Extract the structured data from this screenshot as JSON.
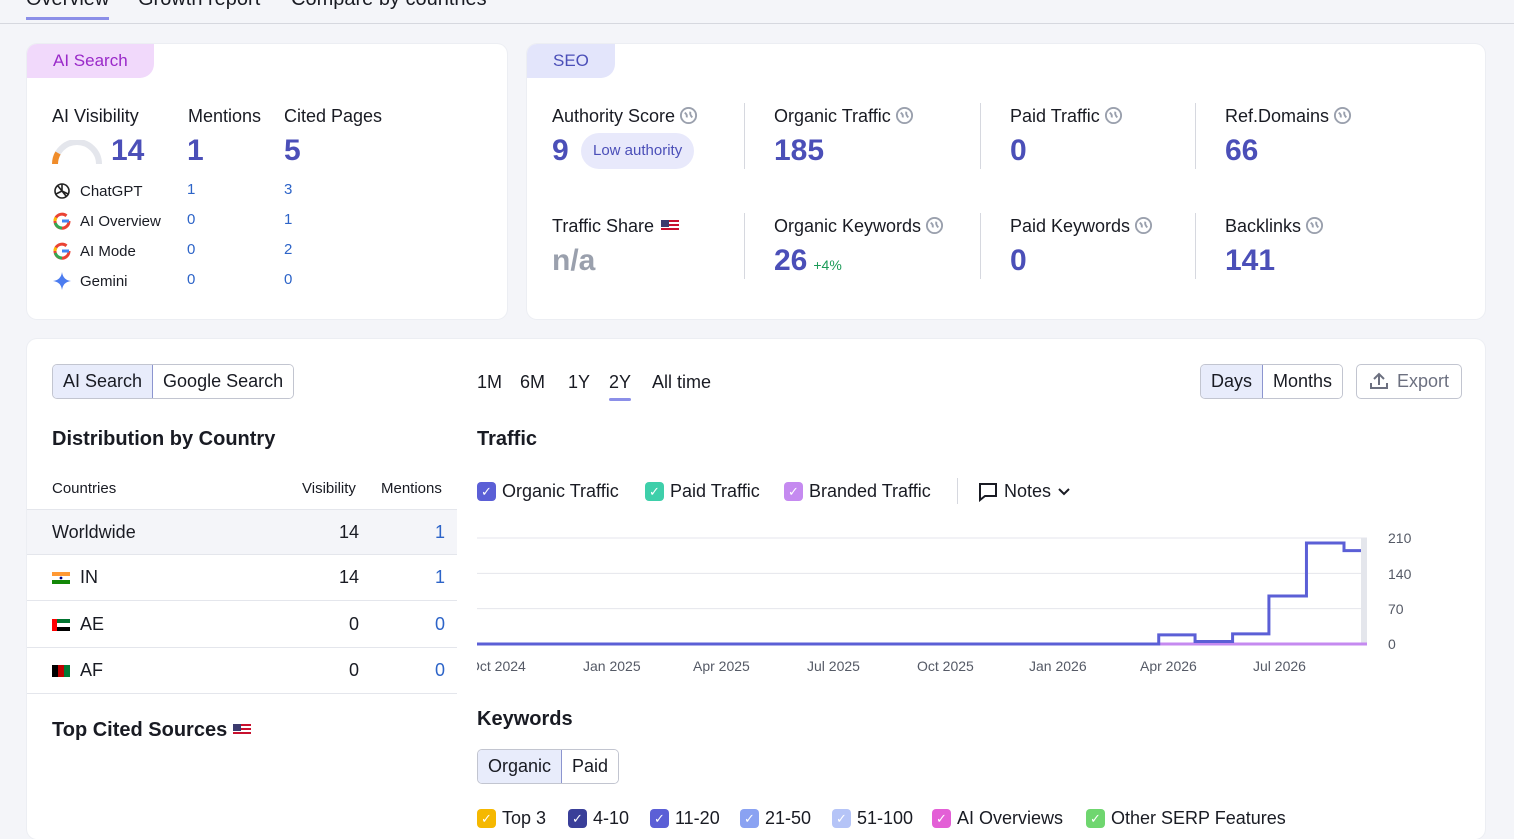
{
  "tabs": [
    {
      "label": "Overview",
      "active": true
    },
    {
      "label": "Growth report",
      "active": false
    },
    {
      "label": "Compare by countries",
      "active": false
    }
  ],
  "ai_card": {
    "tag": "AI Search",
    "ai_visibility_label": "AI Visibility",
    "ai_visibility_value": "14",
    "mentions_label": "Mentions",
    "mentions_value": "1",
    "cited_label": "Cited Pages",
    "cited_value": "5",
    "engines": [
      {
        "name": "ChatGPT",
        "icon": "chatgpt-icon",
        "mentions": "1",
        "cited": "3"
      },
      {
        "name": "AI Overview",
        "icon": "google-icon",
        "mentions": "0",
        "cited": "1"
      },
      {
        "name": "AI Mode",
        "icon": "google-icon",
        "mentions": "0",
        "cited": "2"
      },
      {
        "name": "Gemini",
        "icon": "gemini-icon",
        "mentions": "0",
        "cited": "0"
      }
    ]
  },
  "seo_card": {
    "tag": "SEO",
    "authority_label": "Authority Score",
    "authority_value": "9",
    "authority_badge": "Low authority",
    "organic_traffic_label": "Organic Traffic",
    "organic_traffic_value": "185",
    "paid_traffic_label": "Paid Traffic",
    "paid_traffic_value": "0",
    "ref_domains_label": "Ref.Domains",
    "ref_domains_value": "66",
    "traffic_share_label": "Traffic Share",
    "traffic_share_value": "n/a",
    "organic_keywords_label": "Organic Keywords",
    "organic_keywords_value": "26",
    "organic_keywords_delta": "+4%",
    "paid_keywords_label": "Paid Keywords",
    "paid_keywords_value": "0",
    "backlinks_label": "Backlinks",
    "backlinks_value": "141"
  },
  "left_panel": {
    "seg": [
      "AI Search",
      "Google Search"
    ],
    "dist_title": "Distribution by Country",
    "col_countries": "Countries",
    "col_visibility": "Visibility",
    "col_mentions": "Mentions",
    "rows": [
      {
        "country": "Worldwide",
        "visibility": "14",
        "mentions": "1"
      },
      {
        "country": "IN",
        "visibility": "14",
        "mentions": "1"
      },
      {
        "country": "AE",
        "visibility": "0",
        "mentions": "0"
      },
      {
        "country": "AF",
        "visibility": "0",
        "mentions": "0"
      }
    ],
    "top_cited_title": "Top Cited Sources"
  },
  "periods": [
    "1M",
    "6M",
    "1Y",
    "2Y",
    "All time"
  ],
  "active_period": "2Y",
  "granularity": [
    "Days",
    "Months"
  ],
  "export_label": "Export",
  "traffic_title": "Traffic",
  "legend": [
    {
      "label": "Organic Traffic",
      "color": "#5b5fd6"
    },
    {
      "label": "Paid Traffic",
      "color": "#3ecfaa"
    },
    {
      "label": "Branded Traffic",
      "color": "#c58af0"
    }
  ],
  "notes_label": "Notes",
  "keywords_title": "Keywords",
  "keywords_seg": [
    "Organic",
    "Paid"
  ],
  "keyword_legend": [
    {
      "label": "Top 3",
      "color": "#f5b800"
    },
    {
      "label": "4-10",
      "color": "#3a3f99"
    },
    {
      "label": "11-20",
      "color": "#5b5fd6"
    },
    {
      "label": "21-50",
      "color": "#8aa2f2"
    },
    {
      "label": "51-100",
      "color": "#b5c4f7"
    },
    {
      "label": "AI Overviews",
      "color": "#e35fd6"
    },
    {
      "label": "Other SERP Features",
      "color": "#6fd66f"
    }
  ],
  "chart_data": {
    "type": "line",
    "x_tick_labels": [
      "Oct 2024",
      "Jan 2025",
      "Apr 2025",
      "Jul 2025",
      "Oct 2025",
      "Jan 2026",
      "Apr 2026",
      "Jul 2026"
    ],
    "y_tick_labels": [
      "210",
      "140",
      "70",
      "0"
    ],
    "ylim": [
      0,
      210
    ],
    "series": [
      {
        "name": "Organic Traffic",
        "color": "#5b5fd6",
        "x": [
          "2024-10",
          "2025-01",
          "2025-04",
          "2025-07",
          "2025-10",
          "2026-01",
          "2026-03",
          "2026-04",
          "2026-05",
          "2026-06",
          "2026-07",
          "2026-08",
          "2026-09"
        ],
        "values": [
          0,
          0,
          0,
          0,
          0,
          0,
          0,
          18,
          5,
          20,
          95,
          200,
          185
        ]
      },
      {
        "name": "Branded Traffic",
        "color": "#c58af0",
        "x": [
          "2024-10",
          "2026-09"
        ],
        "values": [
          0,
          0
        ]
      }
    ]
  }
}
